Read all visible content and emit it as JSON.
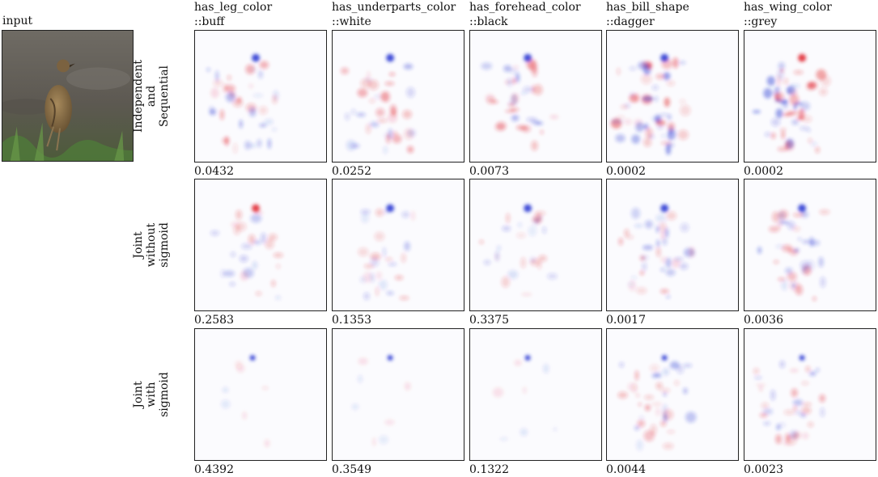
{
  "input_label": "input",
  "columns": [
    {
      "line1": "has_leg_color",
      "line2": "::buff"
    },
    {
      "line1": "has_underparts_color",
      "line2": "::white"
    },
    {
      "line1": "has_forehead_color",
      "line2": "::black"
    },
    {
      "line1": "has_bill_shape",
      "line2": "::dagger"
    },
    {
      "line1": "has_wing_color",
      "line2": "::grey"
    }
  ],
  "rows": [
    {
      "label_lines": [
        "Independent",
        "and",
        "Sequential"
      ],
      "scores": [
        "0.0432",
        "0.0252",
        "0.0073",
        "0.0002",
        "0.0002"
      ]
    },
    {
      "label_lines": [
        "Joint",
        "without",
        "sigmoid"
      ],
      "scores": [
        "0.2583",
        "0.1353",
        "0.3375",
        "0.0017",
        "0.0036"
      ]
    },
    {
      "label_lines": [
        "Joint",
        "with",
        "sigmoid"
      ],
      "scores": [
        "0.4392",
        "0.3549",
        "0.1322",
        "0.0044",
        "0.0023"
      ]
    }
  ],
  "colors": {
    "positive": "#e0202a",
    "negative": "#2030d0",
    "background": "#ffffff"
  }
}
